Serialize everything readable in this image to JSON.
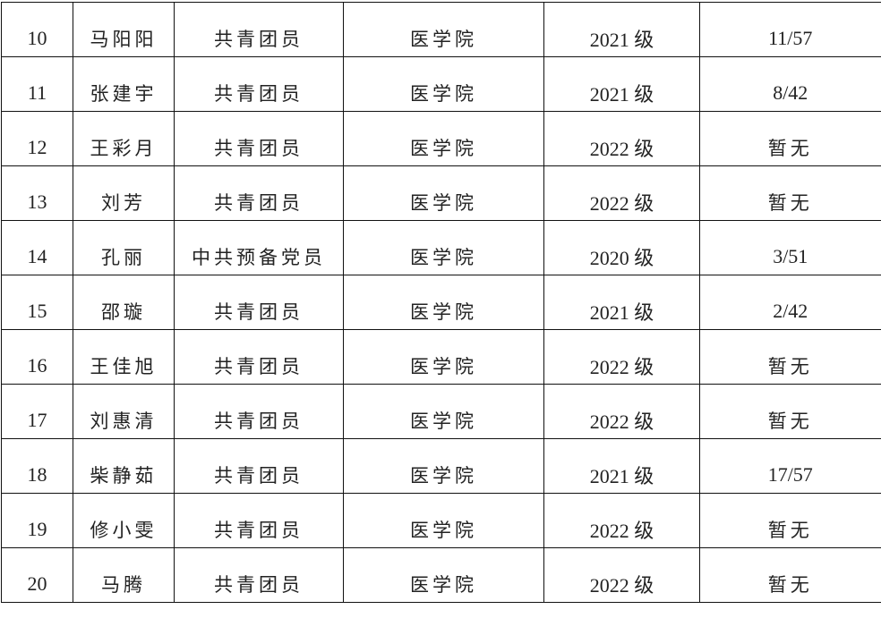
{
  "rows": [
    {
      "no": "10",
      "name": "马阳阳",
      "political": "共青团员",
      "college": "医学院",
      "grade": "2021 级",
      "rank": "11/57"
    },
    {
      "no": "11",
      "name": "张建宇",
      "political": "共青团员",
      "college": "医学院",
      "grade": "2021 级",
      "rank": "8/42"
    },
    {
      "no": "12",
      "name": "王彩月",
      "political": "共青团员",
      "college": "医学院",
      "grade": "2022 级",
      "rank": "暂无"
    },
    {
      "no": "13",
      "name": "刘芳",
      "political": "共青团员",
      "college": "医学院",
      "grade": "2022 级",
      "rank": "暂无"
    },
    {
      "no": "14",
      "name": "孔丽",
      "political": "中共预备党员",
      "college": "医学院",
      "grade": "2020 级",
      "rank": "3/51"
    },
    {
      "no": "15",
      "name": "邵璇",
      "political": "共青团员",
      "college": "医学院",
      "grade": "2021 级",
      "rank": "2/42"
    },
    {
      "no": "16",
      "name": "王佳旭",
      "political": "共青团员",
      "college": "医学院",
      "grade": "2022 级",
      "rank": "暂无"
    },
    {
      "no": "17",
      "name": "刘惠清",
      "political": "共青团员",
      "college": "医学院",
      "grade": "2022 级",
      "rank": "暂无"
    },
    {
      "no": "18",
      "name": "柴静茹",
      "political": "共青团员",
      "college": "医学院",
      "grade": "2021 级",
      "rank": "17/57"
    },
    {
      "no": "19",
      "name": "修小雯",
      "political": "共青团员",
      "college": "医学院",
      "grade": "2022 级",
      "rank": "暂无"
    },
    {
      "no": "20",
      "name": "马腾",
      "political": "共青团员",
      "college": "医学院",
      "grade": "2022 级",
      "rank": "暂无"
    }
  ]
}
